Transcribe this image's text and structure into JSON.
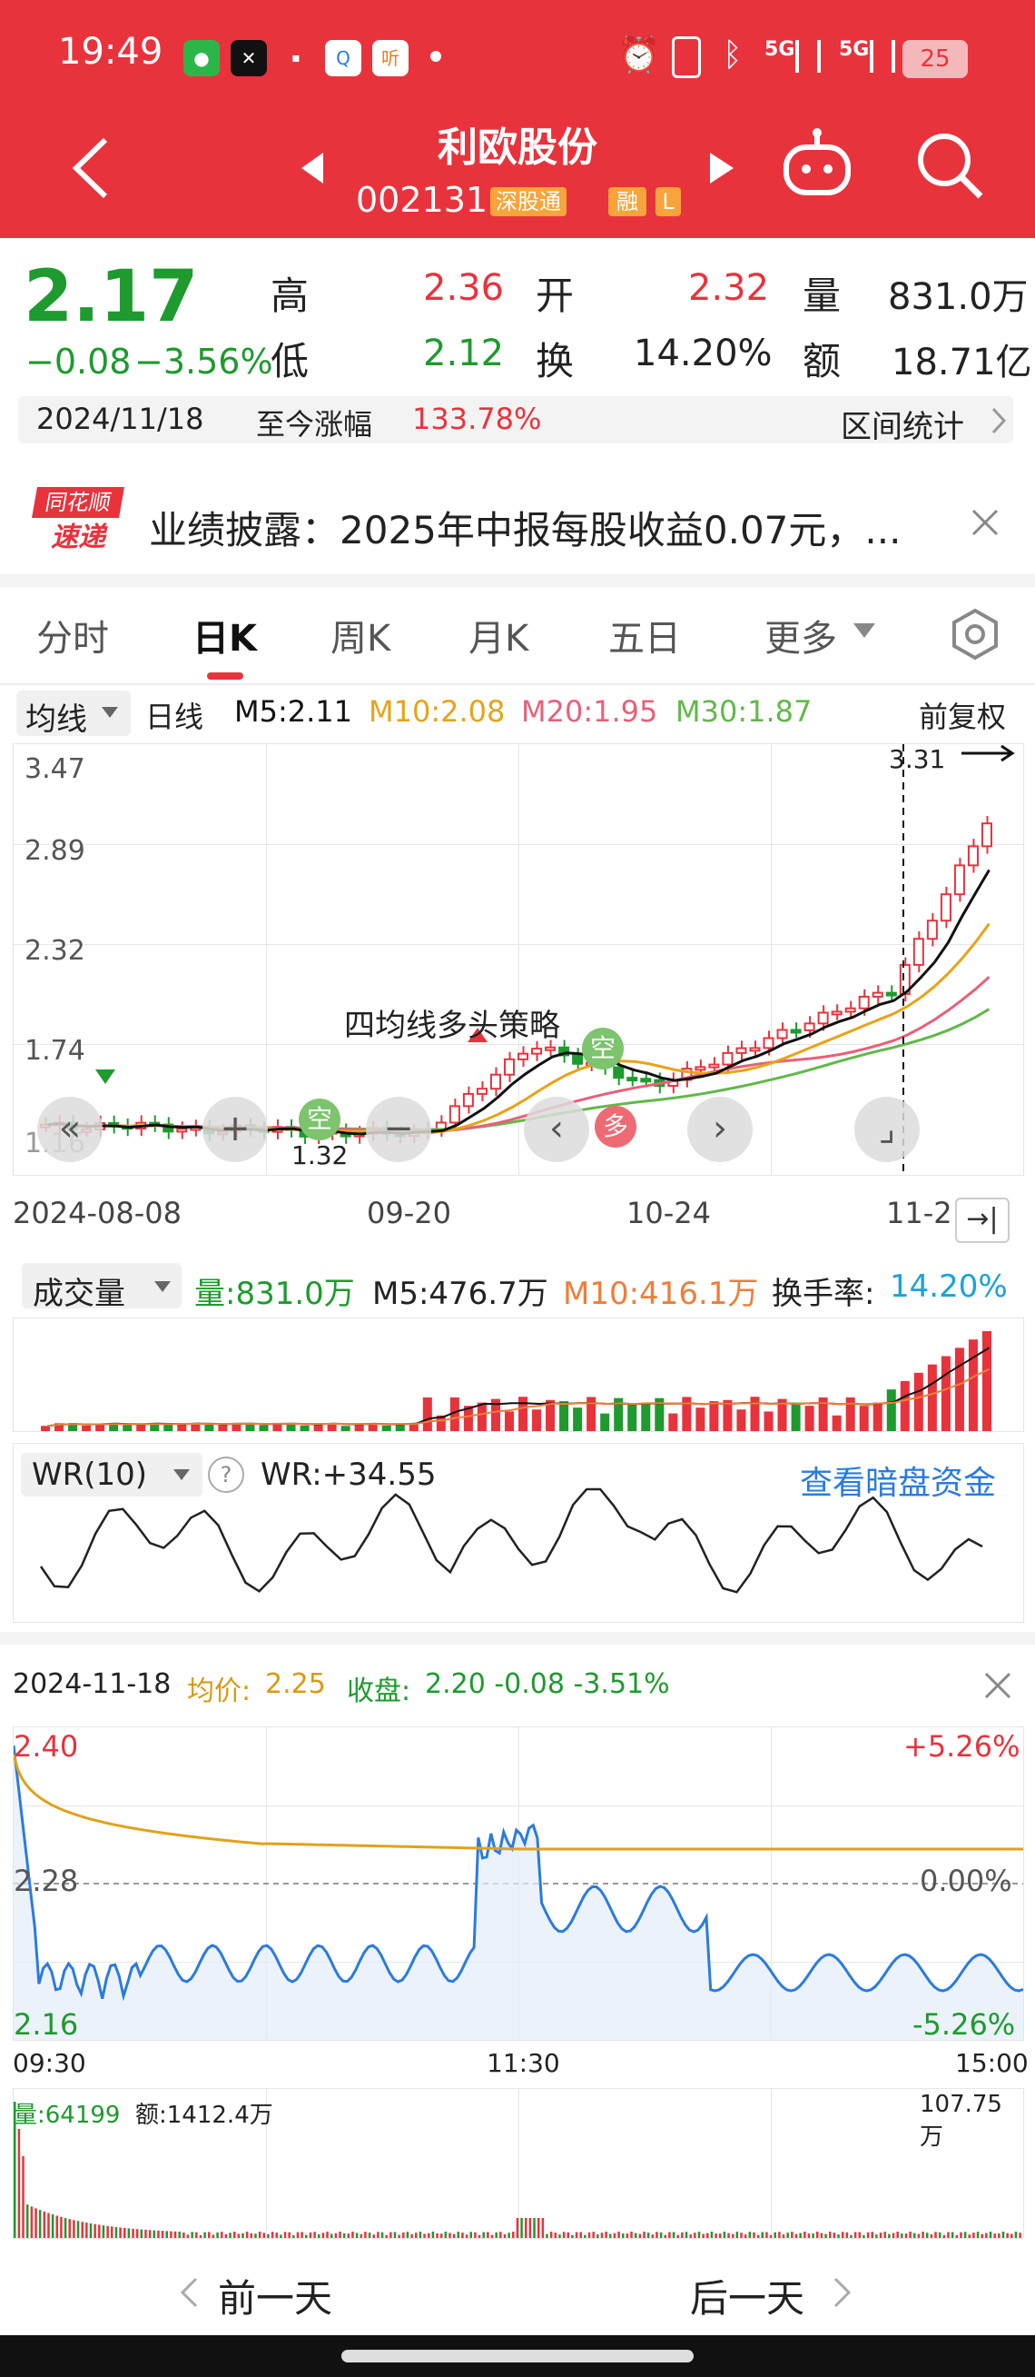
{
  "status_bar": {
    "time": "19:49",
    "battery": "25",
    "signal_a": "5G",
    "signal_b": "5G"
  },
  "header": {
    "title": "利欧股份",
    "code": "002131",
    "badge_connect": "深股通",
    "badge_margin": "融",
    "badge_l": "L"
  },
  "quote": {
    "price": "2.17",
    "change": "−0.08",
    "change_pct": "−3.56%",
    "high_label": "高",
    "high": "2.36",
    "open_label": "开",
    "open": "2.32",
    "volume_label": "量",
    "volume": "831.0万",
    "low_label": "低",
    "low": "2.12",
    "turnover_label": "换",
    "turnover": "14.20%",
    "amount_label": "额",
    "amount": "18.71亿",
    "date": "2024/11/18",
    "gain_label": "至今涨幅",
    "gain": "133.78%",
    "range_stats": "区间统计"
  },
  "news": {
    "logo_top": "同花顺",
    "logo_bottom": "速递",
    "text": "业绩披露：2025年中报每股收益0.07元，..."
  },
  "tabs": [
    "分时",
    "日K",
    "周K",
    "月K",
    "五日",
    "更多"
  ],
  "active_tab": "日K",
  "ma_bar": {
    "indicator": "均线",
    "period": "日线",
    "m5": "M5:2.11",
    "m10": "M10:2.08",
    "m20": "M20:1.95",
    "m30": "M30:1.87",
    "adjust": "前复权"
  },
  "kchart": {
    "y_ticks": [
      "3.47",
      "2.89",
      "2.32",
      "1.74",
      "1.16"
    ],
    "x_ticks": [
      "2024-08-08",
      "09-20",
      "10-24",
      "11-2"
    ],
    "max_label": "3.31",
    "min_label": "1.32",
    "strategy": "四均线多头策略",
    "tag_kong": "空",
    "tag_duo": "多",
    "colors": {
      "up": "#e8333d",
      "down": "#1e9a2e",
      "m5": "#000000",
      "m10": "#e8a317",
      "m20": "#e8607a",
      "m30": "#62b84a"
    }
  },
  "volume_panel": {
    "label": "成交量",
    "vol": "量:831.0万",
    "m5": "M5:476.7万",
    "m10": "M10:416.1万",
    "turnover_label": "换手率:",
    "turnover": "14.20%"
  },
  "wr_panel": {
    "label": "WR(10)",
    "help": "?",
    "value": "WR:+34.55",
    "link": "查看暗盘资金"
  },
  "intraday": {
    "date": "2024-11-18",
    "avg_label": "均价:",
    "avg": "2.25",
    "close_label": "收盘:",
    "close": "2.20 -0.08 -3.51%",
    "y_top": "2.40",
    "y_mid": "2.28",
    "y_bottom": "2.16",
    "pct_top": "+5.26%",
    "pct_mid": "0.00%",
    "pct_bottom": "-5.26%",
    "t_start": "09:30",
    "t_mid": "11:30",
    "t_end": "15:00",
    "vol": "量:64199",
    "amount": "额:1412.4万",
    "vol_max": "107.75万"
  },
  "nav": {
    "prev": "前一天",
    "next": "后一天"
  }
}
